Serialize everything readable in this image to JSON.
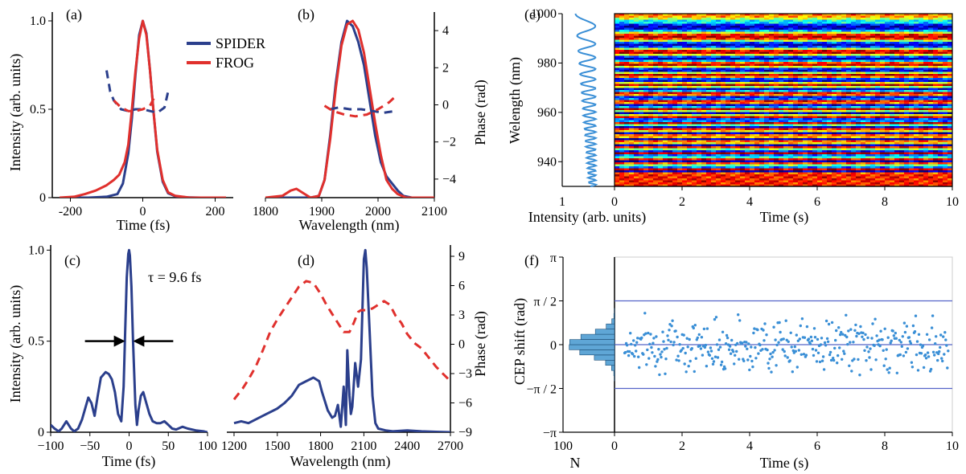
{
  "colors": {
    "spider": "#2b3f8c",
    "frog": "#e0302d",
    "cep_dot": "#3a8fd6",
    "cep_line": "#5564c8",
    "hist_fill": "#5fa6d6",
    "spec_line": "#3a8fd6"
  },
  "legend": {
    "spider": "SPIDER",
    "frog": "FROG"
  },
  "chart_data": [
    {
      "panel": "(a)",
      "type": "line",
      "xlabel": "Time (fs)",
      "ylabel": "Intensity (arb. units)",
      "xlim": [
        -250,
        250
      ],
      "ylim": [
        0,
        1.05
      ],
      "xticks": [
        -200,
        0,
        200
      ],
      "yticks": [
        0,
        0.5,
        1.0
      ],
      "ytick_labels": [
        "0",
        "0.5",
        "1.0"
      ],
      "series": [
        {
          "name": "SPIDER",
          "style": "solid",
          "x": [
            -230,
            -150,
            -100,
            -70,
            -55,
            -40,
            -30,
            -20,
            -10,
            0,
            10,
            20,
            30,
            40,
            55,
            70,
            90,
            120,
            160,
            230
          ],
          "y": [
            0,
            0,
            0.005,
            0.02,
            0.08,
            0.25,
            0.45,
            0.7,
            0.92,
            1.0,
            0.93,
            0.72,
            0.48,
            0.26,
            0.09,
            0.025,
            0.008,
            0.002,
            0,
            0
          ]
        },
        {
          "name": "FROG",
          "style": "solid",
          "x": [
            -230,
            -190,
            -160,
            -130,
            -100,
            -80,
            -65,
            -50,
            -40,
            -30,
            -20,
            -10,
            0,
            10,
            20,
            30,
            40,
            55,
            70,
            90,
            130,
            230
          ],
          "y": [
            0,
            0.005,
            0.02,
            0.04,
            0.07,
            0.1,
            0.13,
            0.2,
            0.3,
            0.5,
            0.72,
            0.9,
            1.0,
            0.92,
            0.72,
            0.48,
            0.27,
            0.1,
            0.03,
            0.01,
            0,
            0
          ]
        },
        {
          "name": "SPIDER phase",
          "style": "dashed",
          "x": [
            -100,
            -90,
            -80,
            -60,
            -40,
            -20,
            0,
            20,
            40,
            60,
            70
          ],
          "y": [
            0.72,
            0.6,
            0.55,
            0.5,
            0.49,
            0.5,
            0.5,
            0.49,
            0.48,
            0.51,
            0.6
          ]
        },
        {
          "name": "FROG phase",
          "style": "dashed",
          "x": [
            -80,
            -60,
            -40,
            -20,
            0,
            20,
            35
          ],
          "y": [
            0.55,
            0.51,
            0.49,
            0.49,
            0.5,
            0.52,
            0.58
          ]
        }
      ]
    },
    {
      "panel": "(b)",
      "type": "line",
      "xlabel": "Wavelength (nm)",
      "ylabel": "Phase (rad)",
      "xlim": [
        1800,
        2100
      ],
      "ylim": [
        0,
        1.05
      ],
      "xticks": [
        1800,
        1900,
        2000,
        2100
      ],
      "phase_ylim": [
        -5,
        5
      ],
      "phase_yticks": [
        -4,
        -2,
        0,
        2,
        4
      ],
      "series": [
        {
          "name": "SPIDER",
          "style": "solid",
          "x": [
            1800,
            1880,
            1895,
            1905,
            1915,
            1925,
            1935,
            1945,
            1955,
            1965,
            1975,
            1985,
            1995,
            2005,
            2015,
            2025,
            2035,
            2045,
            2060,
            2100
          ],
          "y": [
            0,
            0,
            0.01,
            0.1,
            0.35,
            0.65,
            0.88,
            1.0,
            0.97,
            0.88,
            0.75,
            0.55,
            0.35,
            0.2,
            0.12,
            0.08,
            0.04,
            0.01,
            0,
            0
          ]
        },
        {
          "name": "FROG",
          "style": "solid",
          "x": [
            1800,
            1830,
            1845,
            1855,
            1870,
            1880,
            1895,
            1905,
            1915,
            1925,
            1935,
            1945,
            1955,
            1965,
            1975,
            1985,
            1995,
            2005,
            2015,
            2025,
            2035,
            2050,
            2100
          ],
          "y": [
            0,
            0.01,
            0.04,
            0.05,
            0.02,
            0,
            0.01,
            0.1,
            0.33,
            0.62,
            0.86,
            0.98,
            1.0,
            0.95,
            0.82,
            0.62,
            0.42,
            0.24,
            0.1,
            0.05,
            0.02,
            0,
            0
          ]
        },
        {
          "name": "SPIDER phase",
          "style": "dashed",
          "x": [
            1915,
            1930,
            1950,
            1970,
            1990,
            2010,
            2030
          ],
          "y": [
            0.5,
            0.51,
            0.5,
            0.5,
            0.49,
            0.48,
            0.49
          ]
        },
        {
          "name": "FROG phase",
          "style": "dashed",
          "x": [
            1905,
            1920,
            1940,
            1960,
            1980,
            2000,
            2020,
            2030
          ],
          "y": [
            0.52,
            0.49,
            0.47,
            0.46,
            0.47,
            0.5,
            0.54,
            0.57
          ]
        }
      ]
    },
    {
      "panel": "(c)",
      "type": "line",
      "xlabel": "Time (fs)",
      "ylabel": "Intensity (arb. units)",
      "xlim": [
        -100,
        100
      ],
      "ylim": [
        0,
        1.05
      ],
      "xticks": [
        -100,
        -50,
        0,
        50,
        100
      ],
      "yticks": [
        0,
        0.5,
        1.0
      ],
      "ytick_labels": [
        "0",
        "0.5",
        "1.0"
      ],
      "annotation": "τ = 9.6 fs",
      "series": [
        {
          "name": "SPIDER",
          "style": "solid",
          "x": [
            -100,
            -95,
            -90,
            -86,
            -80,
            -74,
            -70,
            -65,
            -60,
            -56,
            -52,
            -48,
            -44,
            -40,
            -36,
            -30,
            -26,
            -22,
            -18,
            -14,
            -10,
            -7,
            -5,
            -3,
            -1,
            0,
            1,
            3,
            5,
            8,
            10,
            12,
            15,
            18,
            22,
            26,
            30,
            35,
            40,
            45,
            50,
            55,
            60,
            68,
            75,
            85,
            95,
            100
          ],
          "y": [
            0.04,
            0.02,
            0.005,
            0.02,
            0.06,
            0.02,
            0.005,
            0.02,
            0.07,
            0.13,
            0.19,
            0.16,
            0.09,
            0.2,
            0.3,
            0.33,
            0.32,
            0.29,
            0.22,
            0.1,
            0.06,
            0.25,
            0.55,
            0.85,
            0.98,
            1.0,
            0.97,
            0.8,
            0.5,
            0.15,
            0.04,
            0.12,
            0.2,
            0.22,
            0.16,
            0.1,
            0.06,
            0.05,
            0.05,
            0.06,
            0.04,
            0.02,
            0.015,
            0.03,
            0.02,
            0.01,
            0.005,
            0
          ]
        }
      ]
    },
    {
      "panel": "(d)",
      "type": "line",
      "xlabel": "Wavelength (nm)",
      "ylabel": "Phase (rad)",
      "xlim": [
        1150,
        2700
      ],
      "ylim": [
        0,
        1.05
      ],
      "xticks": [
        1200,
        1500,
        1800,
        2100,
        2400,
        2700
      ],
      "phase_ylim": [
        -9,
        9
      ],
      "phase_yticks": [
        -9,
        -6,
        -3,
        0,
        3,
        6,
        9
      ],
      "series": [
        {
          "name": "SPIDER",
          "style": "solid",
          "x": [
            1200,
            1250,
            1300,
            1400,
            1500,
            1550,
            1600,
            1650,
            1700,
            1750,
            1790,
            1810,
            1850,
            1880,
            1900,
            1920,
            1940,
            1960,
            1975,
            1985,
            2000,
            2010,
            2020,
            2040,
            2060,
            2080,
            2100,
            2110,
            2120,
            2140,
            2160,
            2180,
            2200,
            2250,
            2300,
            2400,
            2500,
            2600,
            2700
          ],
          "y": [
            0.05,
            0.06,
            0.05,
            0.09,
            0.13,
            0.16,
            0.2,
            0.26,
            0.28,
            0.3,
            0.28,
            0.22,
            0.12,
            0.08,
            0.09,
            0.15,
            0.03,
            0.25,
            0.04,
            0.45,
            0.2,
            0.1,
            0.14,
            0.38,
            0.25,
            0.4,
            0.95,
            1.0,
            0.9,
            0.55,
            0.2,
            0.05,
            0.02,
            0.01,
            0.005,
            0.01,
            0.005,
            0.002,
            0
          ]
        },
        {
          "name": "phase",
          "style": "dashed",
          "x": [
            1200,
            1260,
            1300,
            1350,
            1400,
            1450,
            1500,
            1550,
            1600,
            1650,
            1700,
            1750,
            1800,
            1840,
            1880,
            1920,
            1960,
            1980,
            2000,
            2030,
            2060,
            2080,
            2120,
            2160,
            2200,
            2240,
            2280,
            2320,
            2360,
            2400,
            2450,
            2500,
            2550,
            2600,
            2650,
            2700
          ],
          "y": [
            0.18,
            0.24,
            0.29,
            0.36,
            0.45,
            0.55,
            0.62,
            0.68,
            0.74,
            0.8,
            0.83,
            0.82,
            0.76,
            0.7,
            0.65,
            0.6,
            0.55,
            0.55,
            0.55,
            0.6,
            0.66,
            0.67,
            0.67,
            0.68,
            0.7,
            0.72,
            0.7,
            0.64,
            0.6,
            0.54,
            0.49,
            0.46,
            0.41,
            0.36,
            0.32,
            0.28
          ]
        }
      ]
    },
    {
      "panel": "(e)",
      "type": "heatmap",
      "xlabel": "Time (s)",
      "ylabel": "Welength (nm)",
      "xlim": [
        0,
        10
      ],
      "ylim": [
        930,
        1000
      ],
      "xticks": [
        0,
        2,
        4,
        6,
        8,
        10
      ],
      "yticks": [
        940,
        960,
        980,
        1000
      ],
      "side_xlabel": "Intensity (arb. units)",
      "side_xticks": [
        "1",
        "0"
      ]
    },
    {
      "panel": "(f)",
      "type": "scatter",
      "xlabel": "Time (s)",
      "ylabel": "CEP shift (rad)",
      "xlim": [
        0,
        10
      ],
      "ylim": [
        -3.1416,
        3.1416
      ],
      "xticks": [
        0,
        2,
        4,
        6,
        8,
        10
      ],
      "ytick_labels": [
        "π",
        "π / 2",
        "0",
        "−π / 2",
        "−π"
      ],
      "hlines": [
        "π / 2",
        "0",
        "−π / 2"
      ],
      "side_xlabel": "N",
      "side_xticks": [
        "100",
        "0"
      ],
      "point_count": 400
    }
  ]
}
